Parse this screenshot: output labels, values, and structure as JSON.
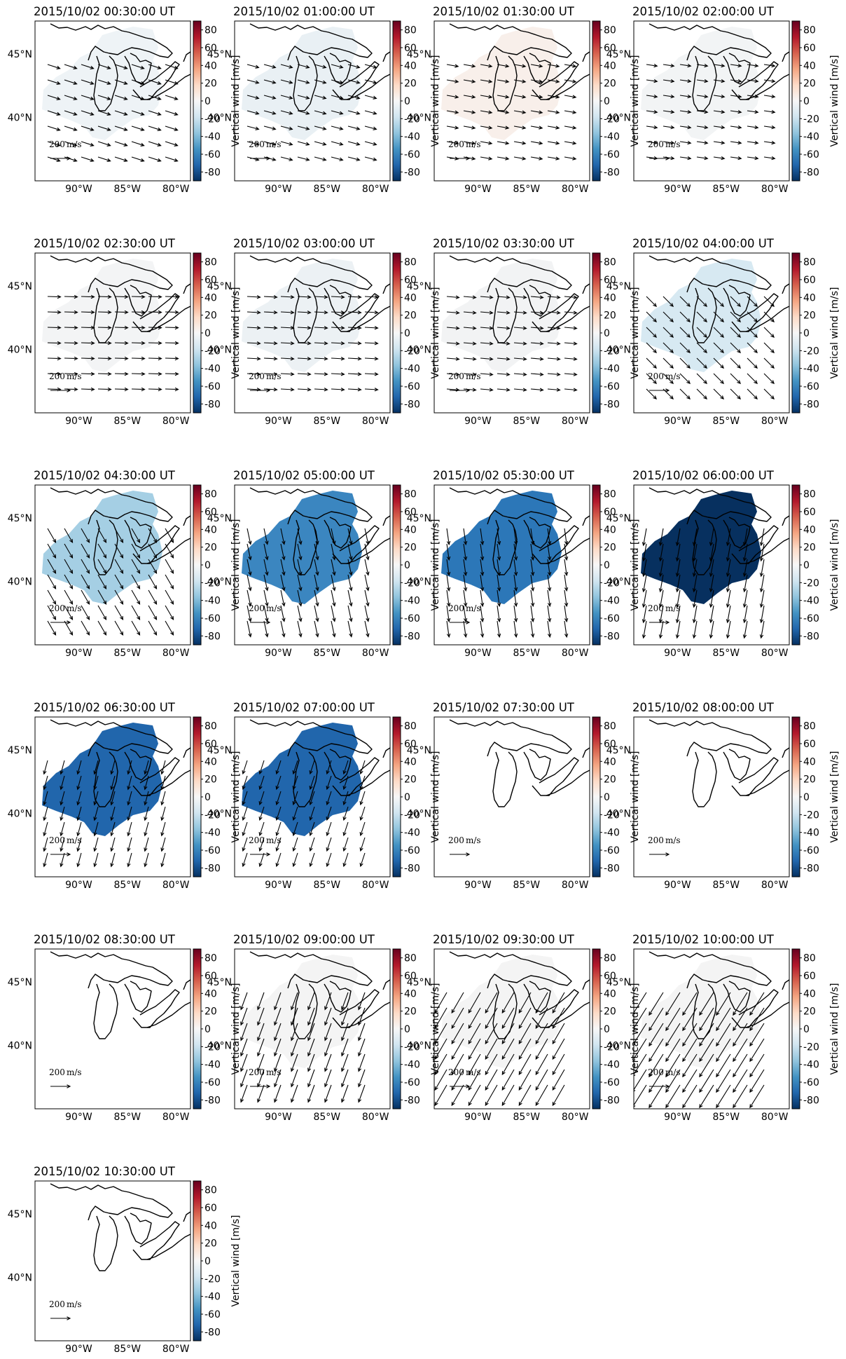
{
  "figure": {
    "colorbar_label": "Vertical wind [m/s]",
    "colorbar_ticks": [
      80,
      60,
      40,
      20,
      0,
      -20,
      -40,
      -60,
      -80
    ],
    "colormap": [
      "#67001f",
      "#b2182b",
      "#d6604d",
      "#f4a582",
      "#fddbc7",
      "#f7f7f7",
      "#d1e5f0",
      "#92c5de",
      "#4393c3",
      "#2166ac",
      "#053061"
    ],
    "lat_ticks": [
      "45°N",
      "40°N"
    ],
    "lon_ticks": [
      "90°W",
      "85°W",
      "80°W"
    ],
    "reference_vector": {
      "value": "200",
      "unit": "m/s"
    }
  },
  "chart_data": [
    {
      "type": "heatmap",
      "title": "2015/10/02 00:30:00 UT",
      "vertical_wind": -5,
      "fill_color": "#eef3f6",
      "wind_direction_deg": 108,
      "wind_length": 0.35
    },
    {
      "type": "heatmap",
      "title": "2015/10/02 01:00:00 UT",
      "vertical_wind": -6,
      "fill_color": "#e9f0f4",
      "wind_direction_deg": 105,
      "wind_length": 0.3
    },
    {
      "type": "heatmap",
      "title": "2015/10/02 01:30:00 UT",
      "vertical_wind": 3,
      "fill_color": "#f8efea",
      "wind_direction_deg": 100,
      "wind_length": 0.28
    },
    {
      "type": "heatmap",
      "title": "2015/10/02 02:00:00 UT",
      "vertical_wind": -2,
      "fill_color": "#f2f4f5",
      "wind_direction_deg": 98,
      "wind_length": 0.25
    },
    {
      "type": "heatmap",
      "title": "2015/10/02 02:30:00 UT",
      "vertical_wind": -1,
      "fill_color": "#f3f4f5",
      "wind_direction_deg": 92,
      "wind_length": 0.35
    },
    {
      "type": "heatmap",
      "title": "2015/10/02 03:00:00 UT",
      "vertical_wind": -4,
      "fill_color": "#ecf1f4",
      "wind_direction_deg": 93,
      "wind_length": 0.35
    },
    {
      "type": "heatmap",
      "title": "2015/10/02 03:30:00 UT",
      "vertical_wind": -2,
      "fill_color": "#f2f3f4",
      "wind_direction_deg": 95,
      "wind_length": 0.32
    },
    {
      "type": "heatmap",
      "title": "2015/10/02 04:00:00 UT",
      "vertical_wind": -12,
      "fill_color": "#d7e9f2",
      "wind_direction_deg": 135,
      "wind_length": 0.4
    },
    {
      "type": "heatmap",
      "title": "2015/10/02 04:30:00 UT",
      "vertical_wind": -35,
      "fill_color": "#a5cfe4",
      "wind_direction_deg": 150,
      "wind_length": 0.5
    },
    {
      "type": "heatmap",
      "title": "2015/10/02 05:00:00 UT",
      "vertical_wind": -60,
      "fill_color": "#3b86c0",
      "wind_direction_deg": 168,
      "wind_length": 0.5
    },
    {
      "type": "heatmap",
      "title": "2015/10/02 05:30:00 UT",
      "vertical_wind": -65,
      "fill_color": "#2c77b8",
      "wind_direction_deg": 172,
      "wind_length": 0.5
    },
    {
      "type": "heatmap",
      "title": "2015/10/02 06:00:00 UT",
      "vertical_wind": -90,
      "fill_color": "#07305f",
      "wind_direction_deg": 190,
      "wind_length": 0.55
    },
    {
      "type": "heatmap",
      "title": "2015/10/02 06:30:00 UT",
      "vertical_wind": -70,
      "fill_color": "#2166ac",
      "wind_direction_deg": 195,
      "wind_length": 0.4
    },
    {
      "type": "heatmap",
      "title": "2015/10/02 07:00:00 UT",
      "vertical_wind": -70,
      "fill_color": "#2166ac",
      "wind_direction_deg": 198,
      "wind_length": 0.4
    },
    {
      "type": "heatmap",
      "title": "2015/10/02 07:30:00 UT",
      "vertical_wind": null,
      "fill_color": null,
      "wind_direction_deg": null,
      "wind_length": 0
    },
    {
      "type": "heatmap",
      "title": "2015/10/02 08:00:00 UT",
      "vertical_wind": null,
      "fill_color": null,
      "wind_direction_deg": null,
      "wind_length": 0
    },
    {
      "type": "heatmap",
      "title": "2015/10/02 08:30:00 UT",
      "vertical_wind": null,
      "fill_color": null,
      "wind_direction_deg": null,
      "wind_length": 0
    },
    {
      "type": "heatmap",
      "title": "2015/10/02 09:00:00 UT",
      "vertical_wind": -1,
      "fill_color": "#f4f4f4",
      "wind_direction_deg": 200,
      "wind_length": 0.6
    },
    {
      "type": "heatmap",
      "title": "2015/10/02 09:30:00 UT",
      "vertical_wind": -1,
      "fill_color": "#f4f4f4",
      "wind_direction_deg": 210,
      "wind_length": 0.85
    },
    {
      "type": "heatmap",
      "title": "2015/10/02 10:00:00 UT",
      "vertical_wind": -1,
      "fill_color": "#f4f4f4",
      "wind_direction_deg": 212,
      "wind_length": 1.0
    },
    {
      "type": "heatmap",
      "title": "2015/10/02 10:30:00 UT",
      "vertical_wind": null,
      "fill_color": null,
      "wind_direction_deg": null,
      "wind_length": 0
    }
  ]
}
